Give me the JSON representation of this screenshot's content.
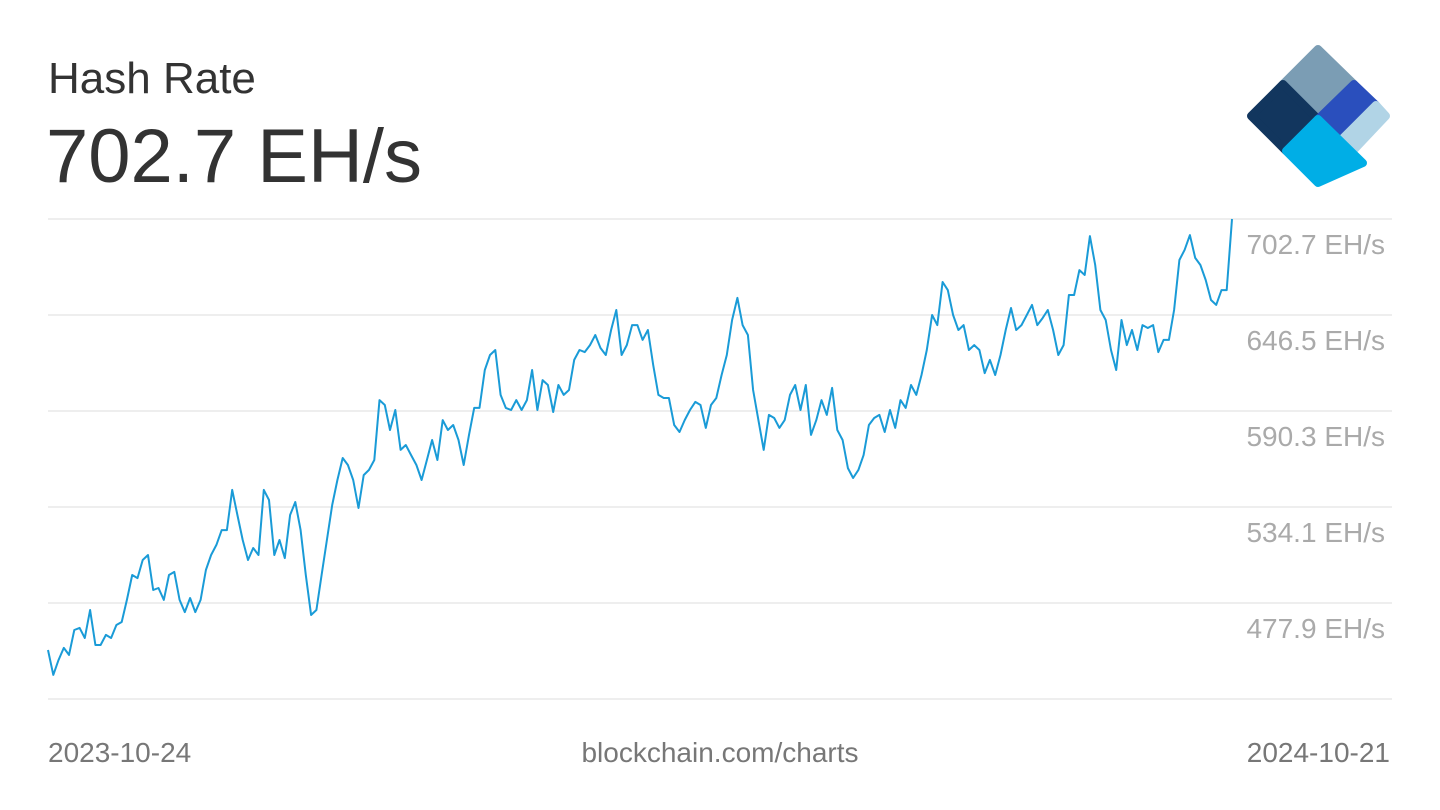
{
  "header": {
    "title": "Hash Rate",
    "current_value": "702.7 EH/s"
  },
  "chart_data": {
    "type": "line",
    "values": [
      450.4,
      435.8,
      444.5,
      451.6,
      447.5,
      462.1,
      463.3,
      457.4,
      473.8,
      453.3,
      453.3,
      459.2,
      457.4,
      465.0,
      466.8,
      479.7,
      494.3,
      492.5,
      503.1,
      506.0,
      485.5,
      486.7,
      479.7,
      494.3,
      496.1,
      479.7,
      472.6,
      480.8,
      472.6,
      479.7,
      497.2,
      506.0,
      511.9,
      520.6,
      520.6,
      544.1,
      529.4,
      514.8,
      503.1,
      510.1,
      506.0,
      544.1,
      538.2,
      506.0,
      514.8,
      504.2,
      529.4,
      537.0,
      520.6,
      494.3,
      470.9,
      473.8,
      494.3,
      514.8,
      535.3,
      549.9,
      562.8,
      558.7,
      549.9,
      533.5,
      552.8,
      555.8,
      561.6,
      596.7,
      593.8,
      579.2,
      590.9,
      567.5,
      570.4,
      564.5,
      558.7,
      549.9,
      561.6,
      573.3,
      561.6,
      585.0,
      579.2,
      582.1,
      573.3,
      558.7,
      576.3,
      592.1,
      592.1,
      614.3,
      623.1,
      626.0,
      599.7,
      592.1,
      590.9,
      596.7,
      590.9,
      596.7,
      614.3,
      590.9,
      608.4,
      605.5,
      589.7,
      605.5,
      599.7,
      602.6,
      620.2,
      626.0,
      624.8,
      628.9,
      634.8,
      627.2,
      623.1,
      637.7,
      649.4,
      623.1,
      628.9,
      640.6,
      640.6,
      631.9,
      637.7,
      617.2,
      599.7,
      597.9,
      597.9,
      582.1,
      578.0,
      585.0,
      590.9,
      595.6,
      593.8,
      580.4,
      593.8,
      597.9,
      611.4,
      623.1,
      643.6,
      656.5,
      640.6,
      634.8,
      602.6,
      585.0,
      567.5,
      588.0,
      586.2,
      580.4,
      585.0,
      599.7,
      605.5,
      590.9,
      605.5,
      576.3,
      585.0,
      596.7,
      588.0,
      603.8,
      579.2,
      573.3,
      556.9,
      551.1,
      555.8,
      564.5,
      582.1,
      586.2,
      588.0,
      578.0,
      590.9,
      580.4,
      596.7,
      592.1,
      605.5,
      599.7,
      611.4,
      626.0,
      646.5,
      640.6,
      665.8,
      661.1,
      646.5,
      637.7,
      640.6,
      626.0,
      628.9,
      626.0,
      612.5,
      620.2,
      611.4,
      623.1,
      637.7,
      650.6,
      637.7,
      640.6,
      646.5,
      652.4,
      640.6,
      644.7,
      649.4,
      637.7,
      623.1,
      628.9,
      658.2,
      658.2,
      672.8,
      669.9,
      692.7,
      675.8,
      649.4,
      643.6,
      626.0,
      614.3,
      643.6,
      628.9,
      637.7,
      626.0,
      640.6,
      638.9,
      640.6,
      624.8,
      631.9,
      631.9,
      649.4,
      678.7,
      684.6,
      693.3,
      679.9,
      675.8,
      667.0,
      655.3,
      652.4,
      661.1,
      661.1,
      702.7
    ],
    "color": "#1a9bd7",
    "ylim": [
      421.7,
      702.7
    ],
    "yticks": [
      {
        "value": 702.7,
        "label": "702.7 EH/s"
      },
      {
        "value": 646.5,
        "label": "646.5 EH/s"
      },
      {
        "value": 590.3,
        "label": "590.3 EH/s"
      },
      {
        "value": 534.1,
        "label": "534.1 EH/s"
      },
      {
        "value": 477.9,
        "label": "477.9 EH/s"
      }
    ],
    "grid": true,
    "x_labels": [
      "2023-10-24",
      "2024-10-21"
    ],
    "source": "blockchain.com/charts"
  }
}
